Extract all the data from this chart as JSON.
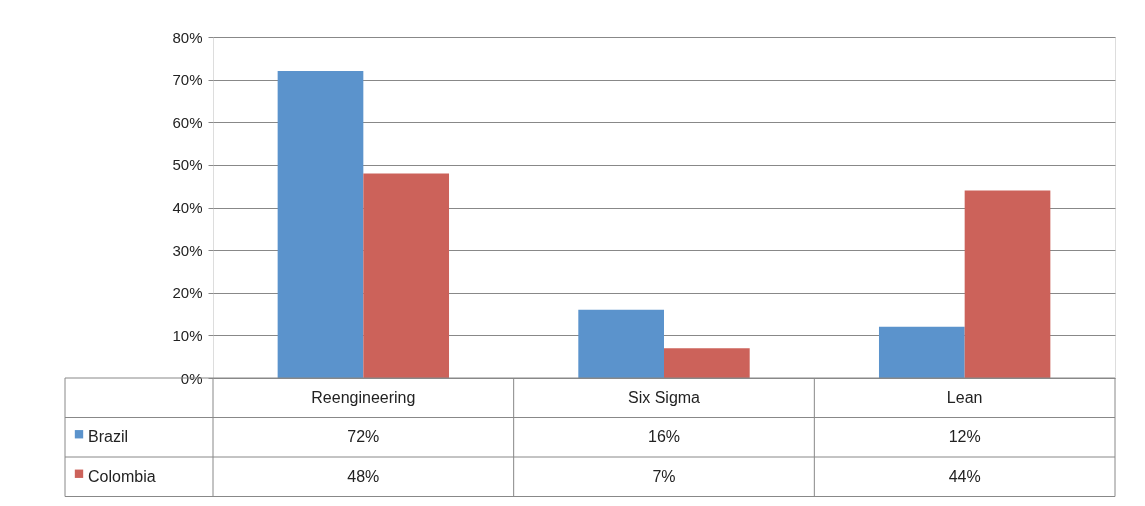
{
  "chart_data": {
    "type": "bar",
    "categories": [
      "Reengineering",
      "Six Sigma",
      "Lean"
    ],
    "series": [
      {
        "name": "Brazil",
        "color": "#5b93cc",
        "values": [
          72,
          16,
          12
        ],
        "value_labels": [
          "72%",
          "16%",
          "12%"
        ]
      },
      {
        "name": "Colombia",
        "color": "#cc625a",
        "values": [
          48,
          7,
          44
        ],
        "value_labels": [
          "48%",
          "7%",
          "44%"
        ]
      }
    ],
    "ylim": [
      0,
      80
    ],
    "yticks": [
      {
        "value": 0,
        "label": "0%"
      },
      {
        "value": 10,
        "label": "10%"
      },
      {
        "value": 20,
        "label": "20%"
      },
      {
        "value": 30,
        "label": "30%"
      },
      {
        "value": 40,
        "label": "40%"
      },
      {
        "value": 50,
        "label": "50%"
      },
      {
        "value": 60,
        "label": "60%"
      },
      {
        "value": 70,
        "label": "70%"
      },
      {
        "value": 80,
        "label": "80%"
      }
    ],
    "grid": "y",
    "legend": "bottom"
  }
}
